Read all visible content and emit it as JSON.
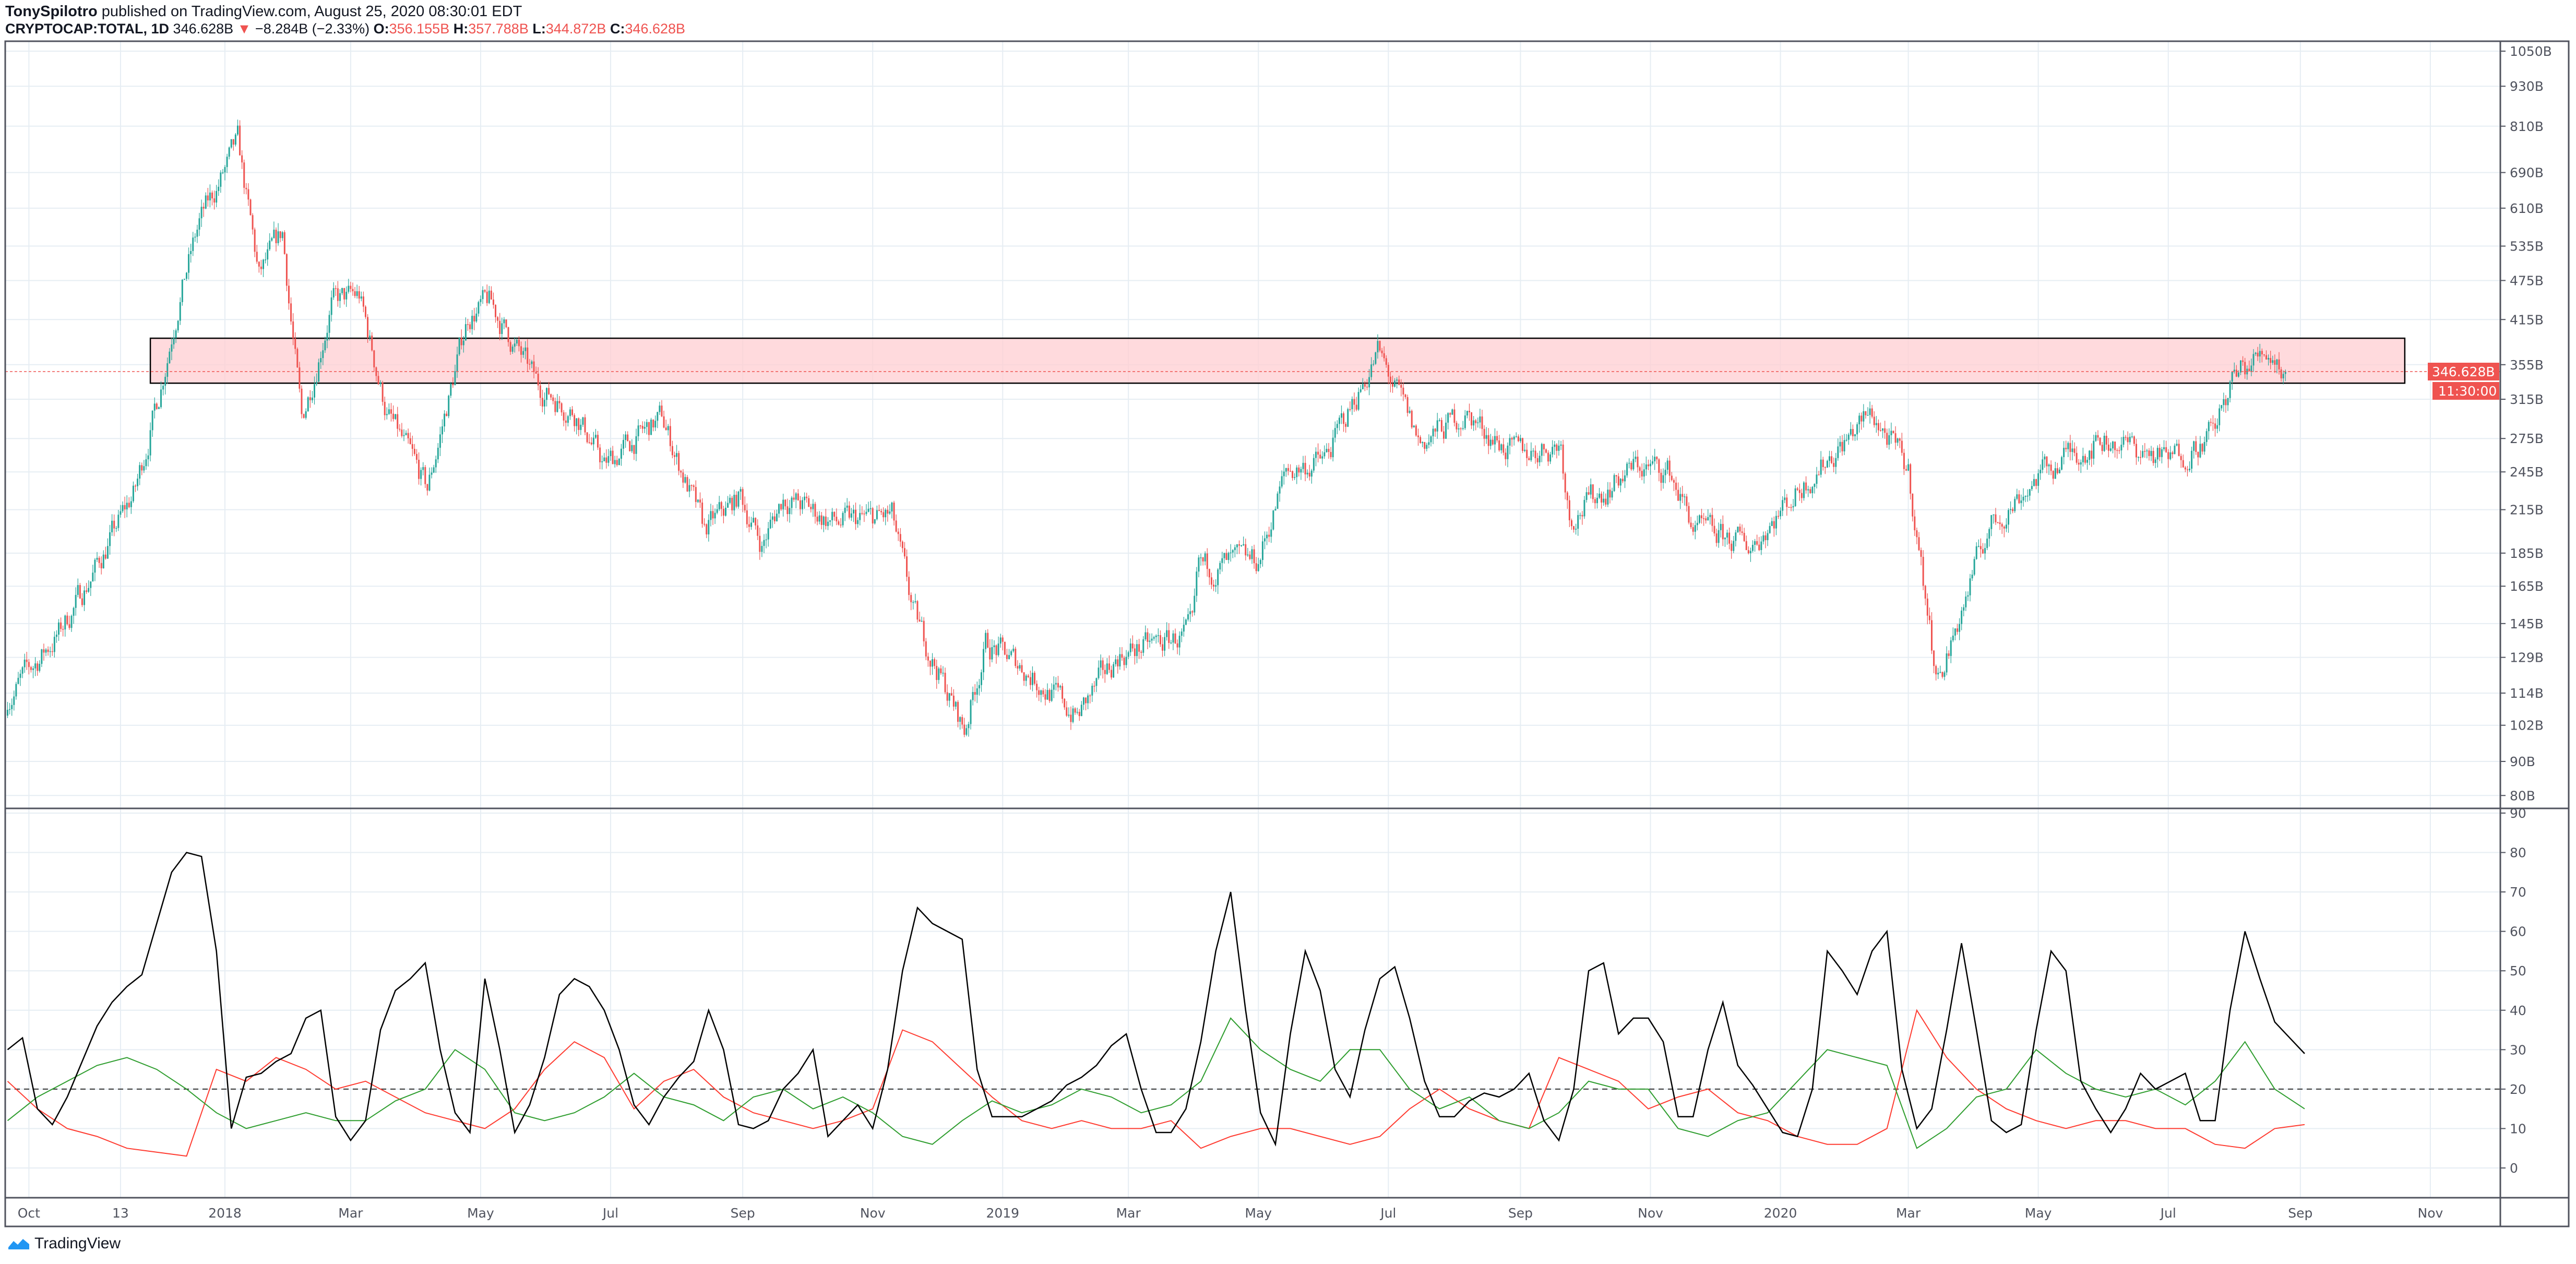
{
  "header": {
    "author": "TonySpilotro",
    "published": "published on TradingView.com, August 25, 2020 08:30:01 EDT",
    "symbol": "CRYPTOCAP:TOTAL, 1D",
    "last": "346.628B",
    "change": "−8.284B (−2.33%)",
    "o_label": "O:",
    "o": "356.155B",
    "h_label": "H:",
    "h": "357.788B",
    "l_label": "L:",
    "l": "344.872B",
    "c_label": "C:",
    "c": "346.628B"
  },
  "footer": {
    "brand": "TradingView",
    "icon": "tradingview-logo-icon"
  },
  "colors": {
    "up": "#26a69a",
    "down": "#ef5350",
    "zone_fill": "#ffcdd2",
    "adx": "#000000",
    "plus_di": "#2e9d2e",
    "minus_di": "#ff3b30",
    "grid": "#e6edf3"
  },
  "chart_data": [
    {
      "type": "candlestick",
      "scale": "log",
      "ylim": [
        80,
        1050
      ],
      "grid": true,
      "y_ticks": [
        "1050B",
        "930B",
        "810B",
        "690B",
        "610B",
        "535B",
        "475B",
        "415B",
        "355B",
        "315B",
        "275B",
        "245B",
        "215B",
        "185B",
        "165B",
        "145B",
        "129B",
        "114B",
        "102B",
        "90B",
        "80B"
      ],
      "y_tick_values": [
        1050,
        930,
        810,
        690,
        610,
        535,
        475,
        415,
        355,
        315,
        275,
        245,
        215,
        185,
        165,
        145,
        129,
        114,
        102,
        90,
        80
      ],
      "x_ticks": [
        {
          "label": "Oct",
          "date": "2017-10-01"
        },
        {
          "label": "13",
          "date": "2017-11-13"
        },
        {
          "label": "2018",
          "date": "2018-01-01"
        },
        {
          "label": "Mar",
          "date": "2018-03-01"
        },
        {
          "label": "May",
          "date": "2018-05-01"
        },
        {
          "label": "Jul",
          "date": "2018-07-01"
        },
        {
          "label": "Sep",
          "date": "2018-09-01"
        },
        {
          "label": "Nov",
          "date": "2018-11-01"
        },
        {
          "label": "2019",
          "date": "2019-01-01"
        },
        {
          "label": "Mar",
          "date": "2019-03-01"
        },
        {
          "label": "May",
          "date": "2019-05-01"
        },
        {
          "label": "Jul",
          "date": "2019-07-01"
        },
        {
          "label": "Sep",
          "date": "2019-09-01"
        },
        {
          "label": "Nov",
          "date": "2019-11-01"
        },
        {
          "label": "2020",
          "date": "2020-01-01"
        },
        {
          "label": "Mar",
          "date": "2020-03-01"
        },
        {
          "label": "May",
          "date": "2020-05-01"
        },
        {
          "label": "Jul",
          "date": "2020-07-01"
        },
        {
          "label": "Sep",
          "date": "2020-09-01"
        },
        {
          "label": "Nov",
          "date": "2020-11-01"
        }
      ],
      "price_path_billions": [
        [
          "2017-09-21",
          112
        ],
        [
          "2017-10-15",
          140
        ],
        [
          "2017-11-01",
          175
        ],
        [
          "2017-11-20",
          230
        ],
        [
          "2017-12-01",
          320
        ],
        [
          "2017-12-10",
          440
        ],
        [
          "2017-12-20",
          580
        ],
        [
          "2018-01-07",
          760
        ],
        [
          "2018-01-17",
          480
        ],
        [
          "2018-01-28",
          560
        ],
        [
          "2018-02-06",
          290
        ],
        [
          "2018-02-20",
          440
        ],
        [
          "2018-03-05",
          450
        ],
        [
          "2018-03-18",
          300
        ],
        [
          "2018-04-06",
          230
        ],
        [
          "2018-04-25",
          420
        ],
        [
          "2018-05-05",
          440
        ],
        [
          "2018-05-28",
          330
        ],
        [
          "2018-06-15",
          300
        ],
        [
          "2018-06-28",
          250
        ],
        [
          "2018-07-25",
          295
        ],
        [
          "2018-08-14",
          200
        ],
        [
          "2018-08-31",
          225
        ],
        [
          "2018-09-10",
          190
        ],
        [
          "2018-09-20",
          225
        ],
        [
          "2018-10-15",
          205
        ],
        [
          "2018-11-10",
          210
        ],
        [
          "2018-11-20",
          150
        ],
        [
          "2018-12-14",
          100
        ],
        [
          "2018-12-24",
          135
        ],
        [
          "2019-01-10",
          125
        ],
        [
          "2019-02-05",
          105
        ],
        [
          "2019-02-24",
          130
        ],
        [
          "2019-03-31",
          140
        ],
        [
          "2019-04-03",
          175
        ],
        [
          "2019-05-01",
          180
        ],
        [
          "2019-05-14",
          245
        ],
        [
          "2019-06-01",
          255
        ],
        [
          "2019-06-26",
          370
        ],
        [
          "2019-07-16",
          270
        ],
        [
          "2019-08-06",
          300
        ],
        [
          "2019-08-29",
          260
        ],
        [
          "2019-09-20",
          270
        ],
        [
          "2019-09-24",
          210
        ],
        [
          "2019-10-25",
          250
        ],
        [
          "2019-11-10",
          245
        ],
        [
          "2019-11-22",
          200
        ],
        [
          "2019-12-18",
          190
        ],
        [
          "2020-01-14",
          240
        ],
        [
          "2020-02-13",
          300
        ],
        [
          "2020-03-01",
          245
        ],
        [
          "2020-03-12",
          135
        ],
        [
          "2020-03-16",
          120
        ],
        [
          "2020-04-07",
          200
        ],
        [
          "2020-04-30",
          240
        ],
        [
          "2020-05-15",
          260
        ],
        [
          "2020-06-01",
          275
        ],
        [
          "2020-07-01",
          255
        ],
        [
          "2020-07-22",
          280
        ],
        [
          "2020-08-01",
          340
        ],
        [
          "2020-08-17",
          375
        ],
        [
          "2020-08-25",
          346.628
        ]
      ],
      "last_price_label": "346.628B",
      "countdown_label": "11:30:00",
      "zone": {
        "from_date": "2017-11-27",
        "to_date": "2020-10-20",
        "top": 389,
        "bottom": 333
      }
    },
    {
      "type": "line",
      "ylim": [
        0,
        90
      ],
      "grid": true,
      "y_ticks": [
        "90",
        "80",
        "70",
        "60",
        "50",
        "40",
        "30",
        "20",
        "10",
        "0"
      ],
      "y_tick_values": [
        90,
        80,
        70,
        60,
        50,
        40,
        30,
        20,
        10,
        0
      ],
      "reference_line": 20,
      "series": [
        {
          "key": "adx",
          "color": "#000000",
          "start": "2017-09-21",
          "step_days": 7,
          "values": [
            30,
            33,
            15,
            11,
            18,
            27,
            36,
            42,
            46,
            49,
            62,
            75,
            80,
            79,
            55,
            10,
            23,
            24,
            27,
            29,
            38,
            40,
            13,
            7,
            12,
            35,
            45,
            48,
            52,
            30,
            14,
            9,
            48,
            30,
            9,
            16,
            28,
            44,
            48,
            46,
            40,
            30,
            16,
            11,
            18,
            23,
            27,
            40,
            30,
            11,
            10,
            12,
            20,
            24,
            30,
            8,
            12,
            16,
            10,
            25,
            50,
            66,
            62,
            60,
            58,
            25,
            13,
            13,
            13,
            15,
            17,
            21,
            23,
            26,
            31,
            34,
            20,
            9,
            9,
            15,
            32,
            55,
            70,
            40,
            14,
            6,
            34,
            55,
            45,
            25,
            18,
            35,
            48,
            51,
            38,
            22,
            13,
            13,
            17,
            19,
            18,
            20,
            24,
            12,
            7,
            20,
            50,
            52,
            34,
            38,
            38,
            32,
            13,
            13,
            30,
            42,
            26,
            21,
            15,
            9,
            8,
            20,
            55,
            50,
            44,
            55,
            60,
            25,
            10,
            15,
            35,
            57,
            35,
            12,
            9,
            11,
            35,
            55,
            50,
            22,
            15,
            9,
            15,
            24,
            20,
            22,
            24,
            12,
            12,
            40,
            60,
            48,
            37,
            33,
            29
          ]
        },
        {
          "key": "plus_di",
          "color": "#2e9d2e",
          "start": "2017-09-21",
          "step_days": 14,
          "values": [
            12,
            18,
            22,
            26,
            28,
            25,
            20,
            14,
            10,
            12,
            14,
            12,
            12,
            17,
            20,
            30,
            25,
            14,
            12,
            14,
            18,
            24,
            18,
            16,
            12,
            18,
            20,
            15,
            18,
            14,
            8,
            6,
            12,
            17,
            14,
            16,
            20,
            18,
            14,
            16,
            22,
            38,
            30,
            25,
            22,
            30,
            30,
            20,
            15,
            18,
            12,
            10,
            14,
            22,
            20,
            20,
            10,
            8,
            12,
            14,
            22,
            30,
            28,
            26,
            5,
            10,
            18,
            20,
            30,
            24,
            20,
            18,
            20,
            16,
            22,
            32,
            20,
            15
          ]
        },
        {
          "key": "minus_di",
          "color": "#ff3b30",
          "start": "2017-09-21",
          "step_days": 14,
          "values": [
            22,
            15,
            10,
            8,
            5,
            4,
            3,
            25,
            22,
            28,
            25,
            20,
            22,
            18,
            14,
            12,
            10,
            15,
            25,
            32,
            28,
            15,
            22,
            25,
            18,
            14,
            12,
            10,
            12,
            15,
            35,
            32,
            25,
            18,
            12,
            10,
            12,
            10,
            10,
            12,
            5,
            8,
            10,
            10,
            8,
            6,
            8,
            15,
            20,
            15,
            12,
            10,
            28,
            25,
            22,
            15,
            18,
            20,
            14,
            12,
            8,
            6,
            6,
            10,
            40,
            28,
            20,
            15,
            12,
            10,
            12,
            12,
            10,
            10,
            6,
            5,
            10,
            11
          ]
        }
      ]
    }
  ]
}
